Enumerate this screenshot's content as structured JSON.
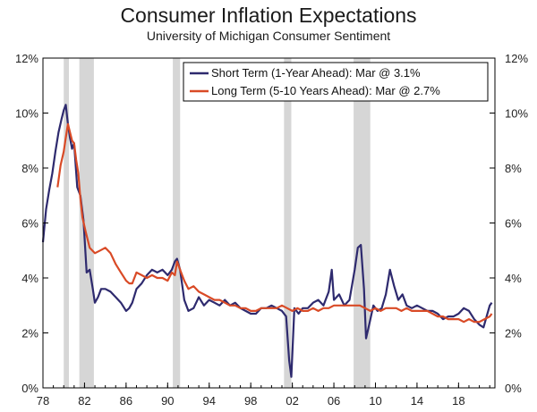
{
  "chart_data": {
    "type": "line",
    "title": "Consumer Inflation Expectations",
    "subtitle": "University of Michigan Consumer Sentiment",
    "xlabel": "",
    "ylabel": "",
    "xlim": [
      1978,
      2021.5
    ],
    "ylim": [
      0,
      12
    ],
    "x_tick_labels": [
      "78",
      "82",
      "86",
      "90",
      "94",
      "98",
      "02",
      "06",
      "10",
      "14",
      "18"
    ],
    "x_ticks": [
      1978,
      1982,
      1986,
      1990,
      1994,
      1998,
      2002,
      2006,
      2010,
      2014,
      2018
    ],
    "y_ticks": [
      0,
      2,
      4,
      6,
      8,
      10,
      12
    ],
    "y_tick_labels_left": [
      "0%",
      "2%",
      "4%",
      "6%",
      "8%",
      "10%",
      "12%"
    ],
    "y_tick_labels_right": [
      "0%",
      "2%",
      "4%",
      "6%",
      "8%",
      "10%",
      "12%"
    ],
    "legend_placement": "top-right",
    "recessions": [
      [
        1980.0,
        1980.5
      ],
      [
        1981.5,
        1982.9
      ],
      [
        1990.5,
        1991.2
      ],
      [
        2001.2,
        2001.9
      ],
      [
        2007.9,
        2009.5
      ]
    ],
    "series": [
      {
        "name": "Short Term (1-Year Ahead): Mar @ 3.1%",
        "color": "#2e2a6e",
        "x": [
          1978.0,
          1978.3,
          1978.6,
          1978.9,
          1979.2,
          1979.5,
          1979.8,
          1980.0,
          1980.2,
          1980.4,
          1980.6,
          1980.8,
          1981.0,
          1981.3,
          1981.6,
          1981.9,
          1982.2,
          1982.5,
          1982.8,
          1983.0,
          1983.3,
          1983.6,
          1984.0,
          1984.5,
          1985.0,
          1985.5,
          1986.0,
          1986.3,
          1986.6,
          1987.0,
          1987.5,
          1988.0,
          1988.5,
          1989.0,
          1989.5,
          1990.0,
          1990.4,
          1990.7,
          1990.9,
          1991.2,
          1991.6,
          1992.0,
          1992.5,
          1993.0,
          1993.5,
          1994.0,
          1994.5,
          1995.0,
          1995.5,
          1996.0,
          1996.5,
          1997.0,
          1997.5,
          1998.0,
          1998.5,
          1999.0,
          1999.5,
          2000.0,
          2000.5,
          2001.0,
          2001.4,
          2001.7,
          2001.9,
          2002.2,
          2002.6,
          2003.0,
          2003.5,
          2004.0,
          2004.5,
          2005.0,
          2005.5,
          2005.8,
          2006.0,
          2006.5,
          2007.0,
          2007.5,
          2008.0,
          2008.3,
          2008.6,
          2008.9,
          2009.1,
          2009.4,
          2009.8,
          2010.2,
          2010.6,
          2011.0,
          2011.4,
          2011.8,
          2012.2,
          2012.6,
          2013.0,
          2013.5,
          2014.0,
          2014.5,
          2015.0,
          2015.5,
          2016.0,
          2016.5,
          2017.0,
          2017.5,
          2018.0,
          2018.5,
          2019.0,
          2019.5,
          2020.0,
          2020.4,
          2020.7,
          2021.0,
          2021.2
        ],
        "values": [
          5.3,
          6.5,
          7.2,
          7.8,
          8.6,
          9.3,
          9.8,
          10.1,
          10.3,
          9.6,
          9.1,
          8.7,
          8.9,
          7.3,
          7.0,
          6.1,
          4.2,
          4.3,
          3.6,
          3.1,
          3.3,
          3.6,
          3.6,
          3.5,
          3.3,
          3.1,
          2.8,
          2.9,
          3.1,
          3.6,
          3.8,
          4.1,
          4.3,
          4.2,
          4.3,
          4.1,
          4.3,
          4.6,
          4.7,
          4.3,
          3.2,
          2.8,
          2.9,
          3.3,
          3.0,
          3.2,
          3.1,
          3.0,
          3.2,
          3.0,
          3.1,
          2.9,
          2.8,
          2.7,
          2.7,
          2.9,
          2.9,
          3.0,
          2.9,
          2.8,
          2.6,
          1.0,
          0.4,
          2.9,
          2.7,
          2.9,
          2.9,
          3.1,
          3.2,
          3.0,
          3.5,
          4.3,
          3.2,
          3.4,
          3.0,
          3.2,
          4.3,
          5.1,
          5.2,
          3.6,
          1.8,
          2.3,
          3.0,
          2.8,
          2.9,
          3.4,
          4.3,
          3.7,
          3.2,
          3.4,
          3.0,
          2.9,
          3.0,
          2.9,
          2.8,
          2.8,
          2.7,
          2.5,
          2.6,
          2.6,
          2.7,
          2.9,
          2.8,
          2.5,
          2.3,
          2.2,
          2.6,
          3.0,
          3.1
        ]
      },
      {
        "name": "Long Term (5-10 Years Ahead): Mar @ 2.7%",
        "color": "#d94a26",
        "x": [
          1979.4,
          1979.7,
          1980.0,
          1980.2,
          1980.4,
          1980.6,
          1980.8,
          1981.0,
          1981.2,
          1981.4,
          1981.6,
          1981.8,
          1982.1,
          1982.5,
          1983.0,
          1983.5,
          1984.0,
          1984.5,
          1985.0,
          1985.5,
          1986.0,
          1986.3,
          1986.6,
          1987.0,
          1987.5,
          1988.0,
          1988.5,
          1989.0,
          1989.5,
          1990.0,
          1990.4,
          1990.7,
          1990.9,
          1991.2,
          1991.6,
          1992.0,
          1992.5,
          1993.0,
          1993.5,
          1994.0,
          1994.5,
          1995.0,
          1995.5,
          1996.0,
          1996.5,
          1997.0,
          1997.5,
          1998.0,
          1998.5,
          1999.0,
          1999.5,
          2000.0,
          2000.5,
          2001.0,
          2001.5,
          2002.0,
          2002.5,
          2003.0,
          2003.5,
          2004.0,
          2004.5,
          2005.0,
          2005.5,
          2006.0,
          2006.5,
          2007.0,
          2007.5,
          2008.0,
          2008.5,
          2009.0,
          2009.5,
          2010.0,
          2010.5,
          2011.0,
          2011.5,
          2012.0,
          2012.5,
          2013.0,
          2013.5,
          2014.0,
          2014.5,
          2015.0,
          2015.5,
          2016.0,
          2016.5,
          2017.0,
          2017.5,
          2018.0,
          2018.5,
          2019.0,
          2019.5,
          2020.0,
          2020.5,
          2021.0,
          2021.2
        ],
        "values": [
          7.3,
          8.1,
          8.6,
          9.1,
          9.6,
          9.3,
          9.0,
          8.9,
          8.3,
          7.8,
          6.9,
          6.2,
          5.7,
          5.1,
          4.9,
          5.0,
          5.1,
          4.9,
          4.5,
          4.2,
          3.9,
          3.8,
          3.8,
          4.2,
          4.1,
          4.0,
          4.1,
          4.0,
          4.0,
          3.9,
          4.2,
          4.1,
          4.6,
          4.3,
          3.9,
          3.6,
          3.7,
          3.5,
          3.4,
          3.3,
          3.2,
          3.2,
          3.1,
          3.0,
          3.0,
          2.9,
          2.9,
          2.8,
          2.8,
          2.9,
          2.9,
          2.9,
          2.9,
          3.0,
          2.9,
          2.8,
          2.9,
          2.8,
          2.8,
          2.9,
          2.8,
          2.9,
          2.9,
          3.0,
          3.0,
          3.0,
          3.0,
          3.0,
          3.0,
          2.9,
          2.8,
          2.9,
          2.8,
          2.9,
          2.9,
          2.9,
          2.8,
          2.9,
          2.8,
          2.8,
          2.8,
          2.8,
          2.7,
          2.6,
          2.6,
          2.5,
          2.5,
          2.5,
          2.4,
          2.5,
          2.4,
          2.4,
          2.5,
          2.6,
          2.7
        ]
      }
    ]
  }
}
